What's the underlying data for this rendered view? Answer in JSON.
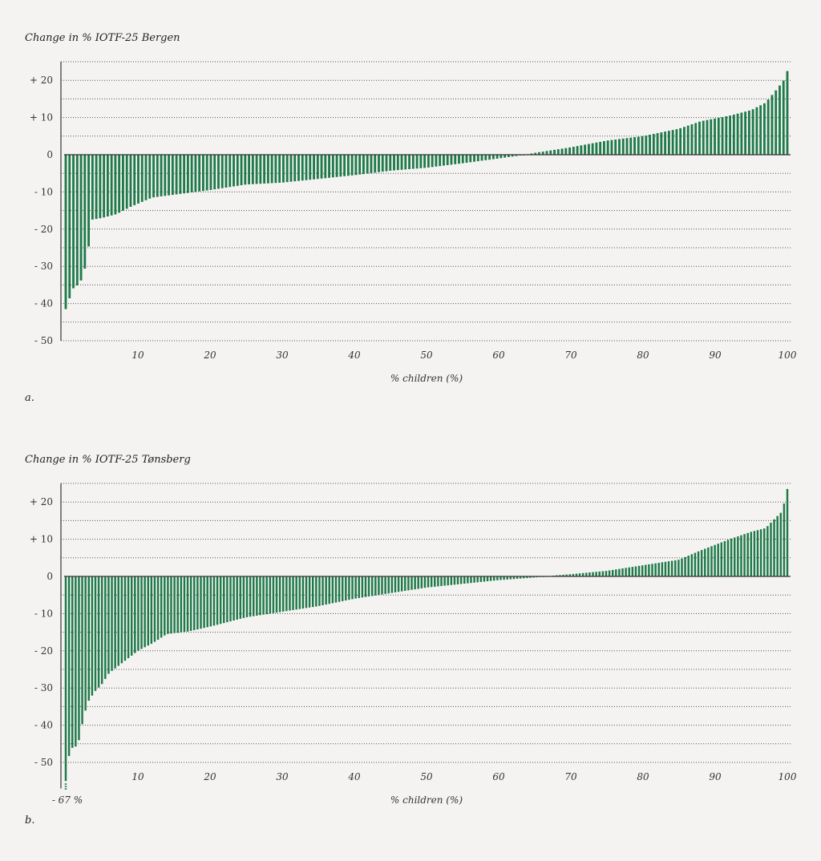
{
  "colors": {
    "bar": "#1f7a4a",
    "axis": "#333333",
    "grid": "#555555",
    "background": "#f4f3f1"
  },
  "chart_data": [
    {
      "panel": "a",
      "type": "bar",
      "title": "Change in % IOTF-25 Bergen",
      "xlabel": "% children (%)",
      "ylabel": "",
      "panel_label": "a.",
      "xlim": [
        0,
        100
      ],
      "ylim": [
        -50,
        25
      ],
      "yticks": [
        20,
        10,
        0,
        -10,
        -20,
        -30,
        -40,
        -50
      ],
      "ytick_labels": [
        "+ 20",
        "+ 10",
        "0",
        "- 10",
        "- 20",
        "- 30",
        "- 40",
        "- 50"
      ],
      "xticks": [
        10,
        20,
        30,
        40,
        50,
        60,
        70,
        80,
        90,
        100
      ],
      "xtick_labels": [
        "10",
        "20",
        "30",
        "40",
        "50",
        "60",
        "70",
        "80",
        "90",
        "100"
      ],
      "grid": true,
      "annotations": [],
      "anchors": [
        [
          0,
          -41.5
        ],
        [
          1,
          -36
        ],
        [
          2,
          -34.5
        ],
        [
          3,
          -28.5
        ],
        [
          3.5,
          -17.5
        ],
        [
          5,
          -17
        ],
        [
          7,
          -16
        ],
        [
          9,
          -14
        ],
        [
          12,
          -11.5
        ],
        [
          16,
          -10.5
        ],
        [
          20,
          -9.5
        ],
        [
          25,
          -8
        ],
        [
          30,
          -7.5
        ],
        [
          35,
          -6.5
        ],
        [
          40,
          -5.5
        ],
        [
          45,
          -4.3
        ],
        [
          50,
          -3.5
        ],
        [
          55,
          -2.3
        ],
        [
          60,
          -1
        ],
        [
          63,
          -0.2
        ],
        [
          65,
          0.5
        ],
        [
          70,
          2
        ],
        [
          75,
          3.8
        ],
        [
          80,
          5
        ],
        [
          85,
          7
        ],
        [
          88,
          9
        ],
        [
          92,
          10.5
        ],
        [
          95,
          12
        ],
        [
          97,
          14
        ],
        [
          98.5,
          17.5
        ],
        [
          99.5,
          20
        ],
        [
          100,
          22.5
        ]
      ],
      "n_bars": 190
    },
    {
      "panel": "b",
      "type": "bar",
      "title": "Change in % IOTF-25 Tønsberg",
      "xlabel": "% children (%)",
      "ylabel": "",
      "panel_label": "b.",
      "xlim": [
        0,
        100
      ],
      "ylim": [
        -57,
        25
      ],
      "yticks": [
        20,
        10,
        0,
        -10,
        -20,
        -30,
        -40,
        -50
      ],
      "ytick_labels": [
        "+ 20",
        "+ 10",
        "0",
        "- 10",
        "- 20",
        "- 30",
        "- 40",
        "- 50"
      ],
      "xticks": [
        10,
        20,
        30,
        40,
        50,
        60,
        70,
        80,
        90,
        100
      ],
      "xtick_labels": [
        "10",
        "20",
        "30",
        "40",
        "50",
        "60",
        "70",
        "80",
        "90",
        "100"
      ],
      "grid": true,
      "annotations": [
        "- 67 %"
      ],
      "anchors": [
        [
          0,
          -67
        ],
        [
          0.5,
          -46.5
        ],
        [
          1,
          -46
        ],
        [
          1.7,
          -45.5
        ],
        [
          2,
          -42
        ],
        [
          2.5,
          -38
        ],
        [
          3,
          -34
        ],
        [
          4,
          -31
        ],
        [
          5,
          -29
        ],
        [
          6,
          -26
        ],
        [
          8,
          -23
        ],
        [
          10,
          -20
        ],
        [
          12,
          -18
        ],
        [
          14,
          -15.5
        ],
        [
          17,
          -14.8
        ],
        [
          20,
          -13.5
        ],
        [
          23,
          -12
        ],
        [
          25,
          -11
        ],
        [
          30,
          -9.5
        ],
        [
          35,
          -8
        ],
        [
          40,
          -6
        ],
        [
          45,
          -4.5
        ],
        [
          50,
          -3
        ],
        [
          55,
          -2
        ],
        [
          60,
          -1
        ],
        [
          65,
          -0.3
        ],
        [
          68,
          0.3
        ],
        [
          70,
          0.6
        ],
        [
          75,
          1.5
        ],
        [
          80,
          3
        ],
        [
          85,
          4.5
        ],
        [
          88,
          7
        ],
        [
          92,
          10
        ],
        [
          95,
          12
        ],
        [
          97,
          13
        ],
        [
          98.5,
          16
        ],
        [
          99.3,
          17.5
        ],
        [
          100,
          23.5
        ]
      ],
      "n_bars": 220
    }
  ]
}
